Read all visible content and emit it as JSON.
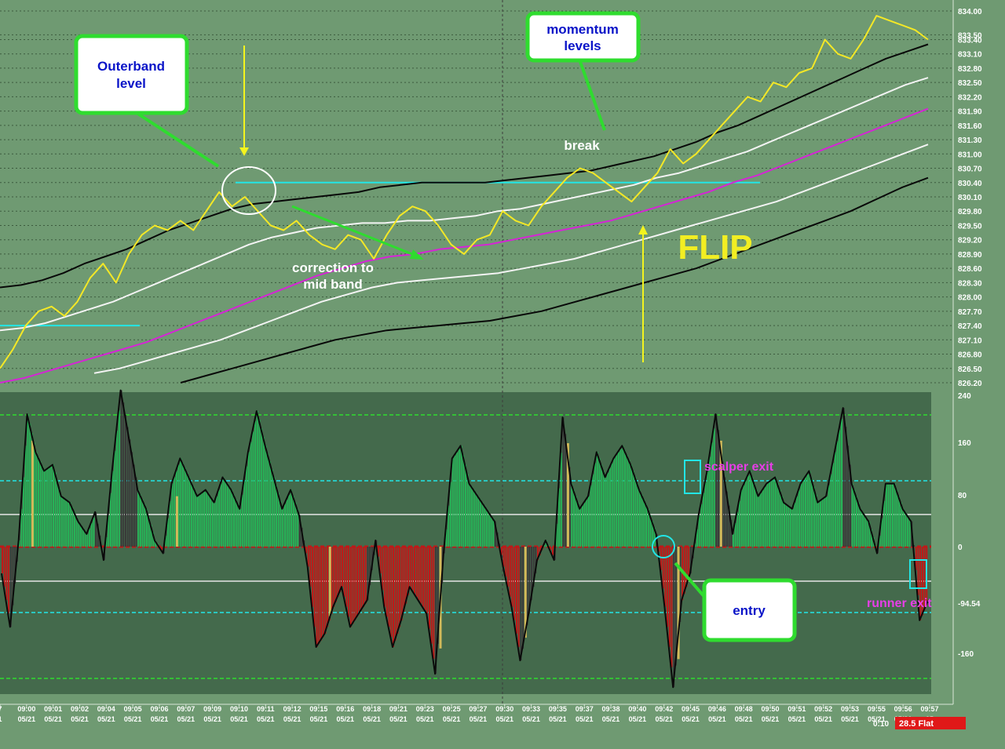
{
  "chart_data": [
    {
      "type": "line",
      "panel": "price",
      "y_axis_ticks": [
        "834.00",
        "833.50",
        "833.40",
        "833.10",
        "832.80",
        "832.50",
        "832.20",
        "831.90",
        "831.60",
        "831.30",
        "831.00",
        "830.70",
        "830.40",
        "830.10",
        "829.80",
        "829.50",
        "829.20",
        "828.90",
        "828.60",
        "828.30",
        "828.00",
        "827.70",
        "827.40",
        "827.10",
        "826.80",
        "826.50",
        "826.20"
      ],
      "ylim": [
        826.2,
        834.0
      ],
      "series": [
        {
          "values": [
            826.5,
            826.9,
            827.4,
            827.7,
            827.8,
            827.6,
            827.9,
            828.4,
            828.7,
            828.3,
            828.9,
            829.3,
            829.5,
            829.4,
            829.6,
            829.4,
            829.8,
            830.2,
            829.9,
            830.1,
            829.8,
            829.5,
            829.4,
            829.6,
            829.3,
            829.1,
            829.0,
            829.3,
            829.2,
            828.8,
            829.3,
            829.7,
            829.9,
            829.8,
            829.5,
            829.1,
            828.9,
            829.2,
            829.3,
            829.8,
            829.6,
            829.5,
            829.9,
            830.2,
            830.5,
            830.7,
            830.6,
            830.4,
            830.2,
            830.0,
            830.3,
            830.6,
            831.1,
            830.8,
            831.0,
            831.3,
            831.6,
            831.9,
            832.2,
            832.1,
            832.5,
            832.4,
            832.7,
            832.8,
            833.4,
            833.1,
            833.0,
            833.4,
            833.9,
            833.8,
            833.7,
            833.6,
            833.4
          ]
        },
        {
          "values": [
            828.2,
            828.25,
            828.35,
            828.5,
            828.7,
            828.85,
            829.0,
            829.2,
            829.4,
            829.55,
            829.7,
            829.85,
            829.95,
            830.0,
            830.05,
            830.1,
            830.15,
            830.2,
            830.3,
            830.35,
            830.4,
            830.4,
            830.4,
            830.4,
            830.45,
            830.5,
            830.55,
            830.6,
            830.65,
            830.75,
            830.85,
            830.95,
            831.1,
            831.25,
            831.45,
            831.6,
            831.8,
            832.0,
            832.2,
            832.4,
            832.6,
            832.8,
            833.0,
            833.15,
            833.3
          ]
        },
        {
          "values": [
            827.3,
            827.35,
            827.45,
            827.6,
            827.75,
            827.9,
            828.1,
            828.3,
            828.5,
            828.7,
            828.9,
            829.1,
            829.25,
            829.35,
            829.45,
            829.5,
            829.55,
            829.55,
            829.6,
            829.6,
            829.65,
            829.7,
            829.8,
            829.85,
            829.95,
            830.05,
            830.15,
            830.25,
            830.35,
            830.5,
            830.6,
            830.75,
            830.9,
            831.05,
            831.25,
            831.45,
            831.65,
            831.85,
            832.05,
            832.25,
            832.45,
            832.6
          ]
        },
        {
          "values": [
            826.2,
            826.3,
            826.45,
            826.6,
            826.75,
            826.9,
            827.05,
            827.25,
            827.45,
            827.65,
            827.85,
            828.05,
            828.25,
            828.45,
            828.6,
            828.75,
            828.85,
            828.9,
            829.0,
            829.05,
            829.1,
            829.2,
            829.3,
            829.4,
            829.5,
            829.6,
            829.75,
            829.9,
            830.05,
            830.2,
            830.4,
            830.55,
            830.75,
            830.95,
            831.15,
            831.35,
            831.55,
            831.75,
            831.95
          ]
        },
        {
          "values": [
            826.4,
            826.5,
            826.65,
            826.8,
            826.95,
            827.1,
            827.3,
            827.5,
            827.7,
            827.9,
            828.05,
            828.2,
            828.3,
            828.35,
            828.4,
            828.45,
            828.5,
            828.6,
            828.7,
            828.8,
            828.95,
            829.1,
            829.25,
            829.4,
            829.55,
            829.7,
            829.85,
            830.0,
            830.2,
            830.4,
            830.6,
            830.8,
            831.0,
            831.2
          ]
        },
        {
          "values": [
            826.2,
            826.35,
            826.5,
            826.65,
            826.8,
            826.95,
            827.1,
            827.2,
            827.3,
            827.35,
            827.4,
            827.45,
            827.5,
            827.6,
            827.7,
            827.85,
            828.0,
            828.15,
            828.3,
            828.45,
            828.6,
            828.8,
            829.0,
            829.2,
            829.4,
            829.6,
            829.8,
            830.05,
            830.3,
            830.5
          ]
        }
      ],
      "hlines": [
        830.4,
        827.4
      ]
    },
    {
      "type": "bar",
      "panel": "momentum",
      "y_axis_ticks": [
        "240",
        "160",
        "80",
        "0",
        "-94.54",
        "-160"
      ],
      "ylim": [
        -205,
        240
      ],
      "levels": [
        200,
        100,
        50,
        0,
        -50,
        -100,
        -200
      ],
      "values": [
        -40,
        -120,
        10,
        210,
        150,
        120,
        130,
        80,
        70,
        40,
        20,
        55,
        -20,
        120,
        248,
        170,
        90,
        60,
        10,
        -10,
        100,
        140,
        110,
        80,
        90,
        70,
        110,
        90,
        60,
        150,
        215,
        160,
        110,
        60,
        90,
        50,
        -30,
        -150,
        -130,
        -90,
        -60,
        -120,
        -100,
        -80,
        10,
        -90,
        -150,
        -110,
        -60,
        -80,
        -100,
        -190,
        -10,
        140,
        160,
        100,
        80,
        60,
        40,
        -30,
        -90,
        -170,
        -100,
        -20,
        10,
        -20,
        205,
        100,
        60,
        80,
        150,
        110,
        140,
        160,
        130,
        90,
        60,
        20,
        -90,
        -210,
        -80,
        -40,
        50,
        120,
        210,
        110,
        20,
        90,
        120,
        80,
        100,
        110,
        70,
        60,
        100,
        120,
        70,
        80,
        150,
        220,
        100,
        60,
        40,
        -10,
        100,
        100,
        60,
        40,
        -110,
        -80
      ]
    }
  ],
  "x_axis": {
    "times": [
      "7",
      "09:00",
      "09:01",
      "09:02",
      "09:04",
      "09:05",
      "09:06",
      "09:07",
      "09:09",
      "09:10",
      "09:11",
      "09:12",
      "09:15",
      "09:16",
      "09:18",
      "09:21",
      "09:23",
      "09:25",
      "09:27",
      "09:30",
      "09:33",
      "09:35",
      "09:37",
      "09:38",
      "09:40",
      "09:42",
      "09:45",
      "09:46",
      "09:48",
      "09:50",
      "09:51",
      "09:52",
      "09:53",
      "09:55",
      "09:56",
      "09:57"
    ],
    "dates": [
      "1",
      "05/21",
      "05/21",
      "05/21",
      "05/21",
      "05/21",
      "05/21",
      "05/21",
      "05/21",
      "05/21",
      "05/21",
      "05/21",
      "05/21",
      "05/21",
      "05/21",
      "05/21",
      "05/21",
      "05/21",
      "05/21",
      "05/21",
      "05/21",
      "05/21",
      "05/21",
      "05/21",
      "05/21",
      "05/21",
      "05/21",
      "05/21",
      "05/21",
      "05/21",
      "05/21",
      "05/21",
      "05/21",
      "05/21",
      "05/21",
      "05"
    ]
  },
  "annotations": {
    "outerband": [
      "Outerband",
      "level"
    ],
    "momentum": [
      "momentum",
      "levels"
    ],
    "break": "break",
    "correction": [
      "correction to",
      "mid band"
    ],
    "flip": "FLIP",
    "scalper_exit": "scalper exit",
    "entry": "entry",
    "runner_exit": "runner exit"
  },
  "status": {
    "timer": "0:10",
    "position": "28.5 Flat"
  },
  "colors": {
    "background": "#6f9a72",
    "osc_panel": "#446a4c",
    "price": "#f4e826",
    "band_inner": "#f4f4f4",
    "band_outer": "#080808",
    "mid_band": "#d624d6",
    "level_line": "#22e6e6",
    "bar_up": "#26b357",
    "bar_down": "#c01818",
    "bar_flip": "#3a3a3a",
    "bar_signal": "#d2ba5a",
    "arrow": "#f4f41e",
    "callout_green": "#2fdc2f"
  }
}
